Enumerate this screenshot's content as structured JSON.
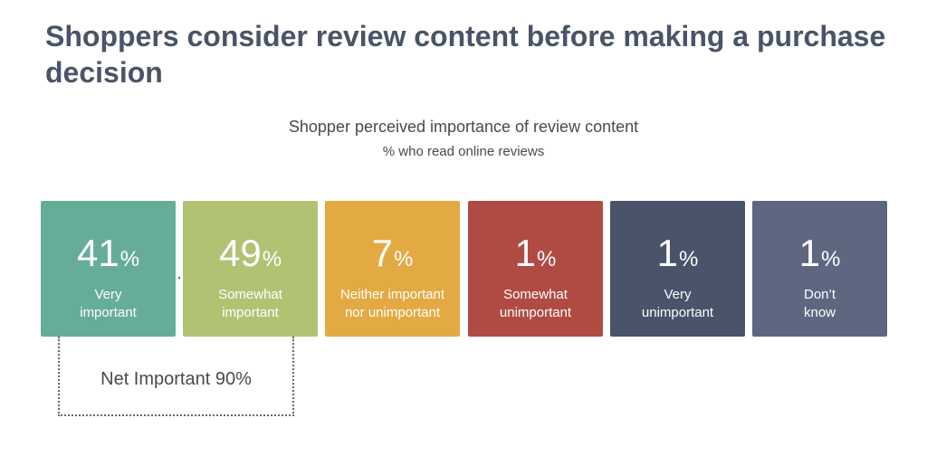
{
  "page": {
    "title": "Shoppers consider review content before making a purchase decision"
  },
  "chart_data": {
    "type": "table",
    "title": "Shopper perceived importance of review content",
    "subtitle": "% who read online reviews",
    "unit": "%",
    "categories": [
      "Very important",
      "Somewhat important",
      "Neither important nor unimportant",
      "Somewhat unimportant",
      "Very unimportant",
      "Don’t know"
    ],
    "label_lines": [
      [
        "Very",
        "important"
      ],
      [
        "Somewhat",
        "important"
      ],
      [
        "Neither important",
        "nor unimportant"
      ],
      [
        "Somewhat",
        "unimportant"
      ],
      [
        "Very",
        "unimportant"
      ],
      [
        "Don’t",
        "know"
      ]
    ],
    "values": [
      41,
      49,
      7,
      1,
      1,
      1
    ],
    "colors": [
      "#66ad99",
      "#b2c273",
      "#e3aa43",
      "#b04b43",
      "#495369",
      "#5e6780"
    ],
    "annotations": [
      {
        "text": "Net Important 90%",
        "spans": [
          "Very important",
          "Somewhat important"
        ]
      }
    ]
  }
}
